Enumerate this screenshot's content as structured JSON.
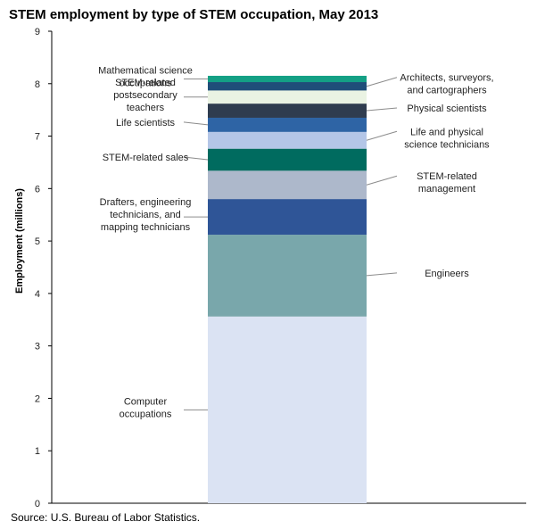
{
  "chart_data": {
    "type": "bar",
    "stacked": true,
    "title": "STEM employment by type of STEM occupation, May 2013",
    "ylabel": "Employment (millions)",
    "ylim": [
      0,
      9
    ],
    "yticks": [
      "0",
      "1",
      "2",
      "3",
      "4",
      "5",
      "6",
      "7",
      "8",
      "9"
    ],
    "grid": false,
    "legend": "none",
    "series": [
      {
        "name": "Computer occupations",
        "label_lines": [
          "Computer",
          "occupations"
        ],
        "value": 3.56,
        "color": "#dbe3f3",
        "side": "left"
      },
      {
        "name": "Engineers",
        "label_lines": [
          "Engineers"
        ],
        "value": 1.56,
        "color": "#79a7ab",
        "side": "right"
      },
      {
        "name": "Drafters, engineering technicians, and mapping technicians",
        "label_lines": [
          "Drafters, engineering",
          "technicians, and",
          "mapping technicians"
        ],
        "value": 0.68,
        "color": "#2f5597",
        "side": "left"
      },
      {
        "name": "STEM-related management",
        "label_lines": [
          "STEM-related",
          "management"
        ],
        "value": 0.54,
        "color": "#adb8cb",
        "side": "right"
      },
      {
        "name": "STEM-related sales",
        "label_lines": [
          "STEM-related sales"
        ],
        "value": 0.42,
        "color": "#006b5f",
        "side": "left"
      },
      {
        "name": "Life and physical science technicians",
        "label_lines": [
          "Life and physical",
          "science technicians"
        ],
        "value": 0.32,
        "color": "#b4c6e7",
        "side": "right"
      },
      {
        "name": "Life scientists",
        "label_lines": [
          "Life scientists"
        ],
        "value": 0.27,
        "color": "#2e64a5",
        "side": "left"
      },
      {
        "name": "Physical scientists",
        "label_lines": [
          "Physical scientists"
        ],
        "value": 0.27,
        "color": "#2f3c4f",
        "side": "right"
      },
      {
        "name": "STEM-related postsecondary teachers",
        "label_lines": [
          "STEM-related",
          "postsecondary",
          "teachers"
        ],
        "value": 0.25,
        "color": "#eaf3e3",
        "side": "left"
      },
      {
        "name": "Architects, surveyors, and cartographers",
        "label_lines": [
          "Architects, surveyors,",
          "and cartographers"
        ],
        "value": 0.16,
        "color": "#1f4e79",
        "side": "right"
      },
      {
        "name": "Mathematical science occupations",
        "label_lines": [
          "Mathematical science",
          "occupations"
        ],
        "value": 0.12,
        "color": "#14a085",
        "side": "left"
      }
    ]
  },
  "source_text": "Source: U.S. Bureau of Labor Statistics."
}
